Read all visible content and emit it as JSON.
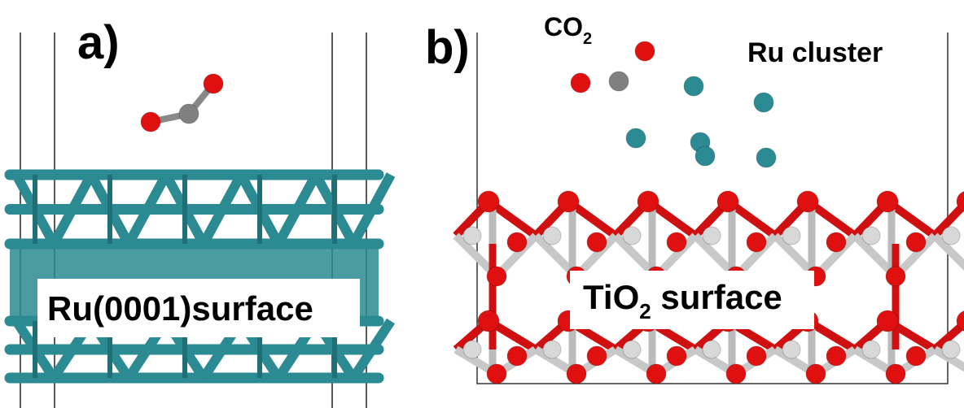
{
  "panels": [
    {
      "label": "a)",
      "caption": "Ru(0001)surface"
    },
    {
      "label": "b)",
      "molecule": {
        "text": "CO",
        "subscript": "2"
      },
      "cluster": "Ru cluster",
      "caption": {
        "text": "TiO",
        "subscript": "2",
        "rest": " surface"
      }
    }
  ]
}
